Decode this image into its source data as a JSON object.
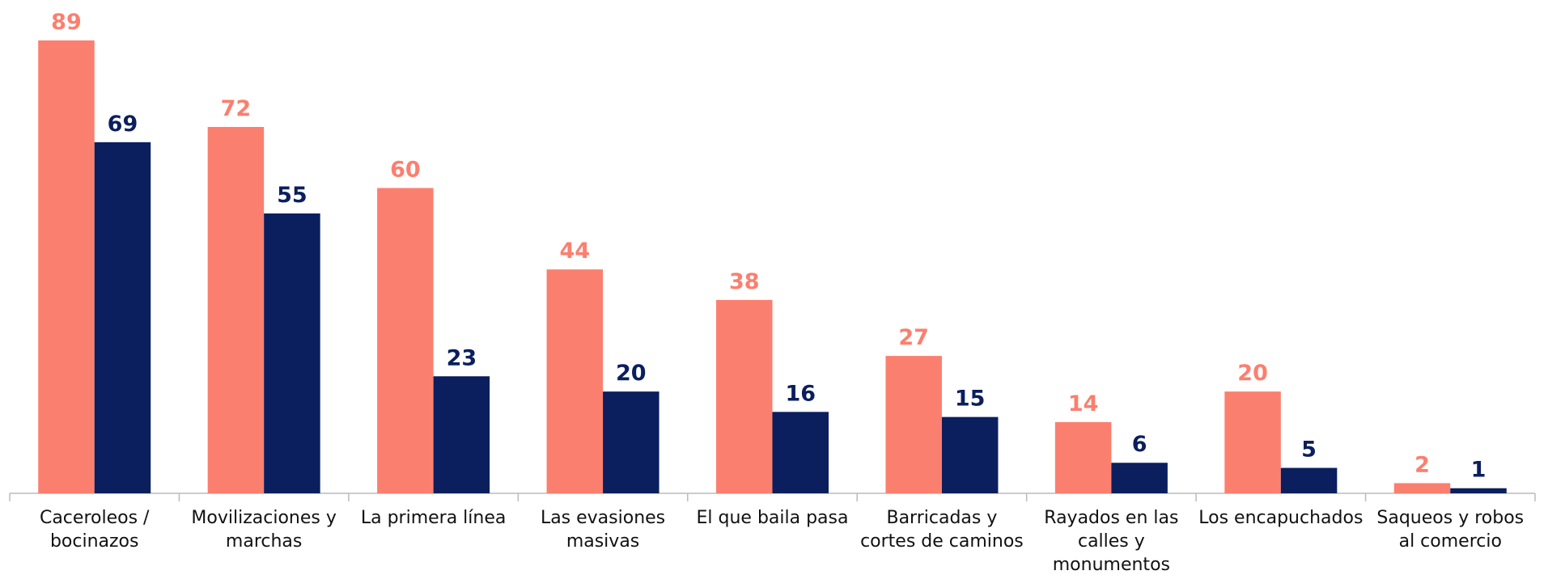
{
  "chart_data": {
    "type": "bar",
    "categories": [
      "Caceroleos / bocinazos",
      "Movilizaciones y marchas",
      "La primera línea",
      "Las evasiones masivas",
      "El que baila pasa",
      "Barricadas y cortes de caminos",
      "Rayados en las calles y monumentos",
      "Los encapuchados",
      "Saqueos y robos al comercio"
    ],
    "series": [
      {
        "color": "#fb7f6f",
        "values": [
          89,
          72,
          60,
          44,
          38,
          27,
          14,
          20,
          2
        ]
      },
      {
        "color": "#0b1f5e",
        "values": [
          69,
          55,
          23,
          20,
          16,
          15,
          6,
          5,
          1
        ]
      }
    ]
  }
}
